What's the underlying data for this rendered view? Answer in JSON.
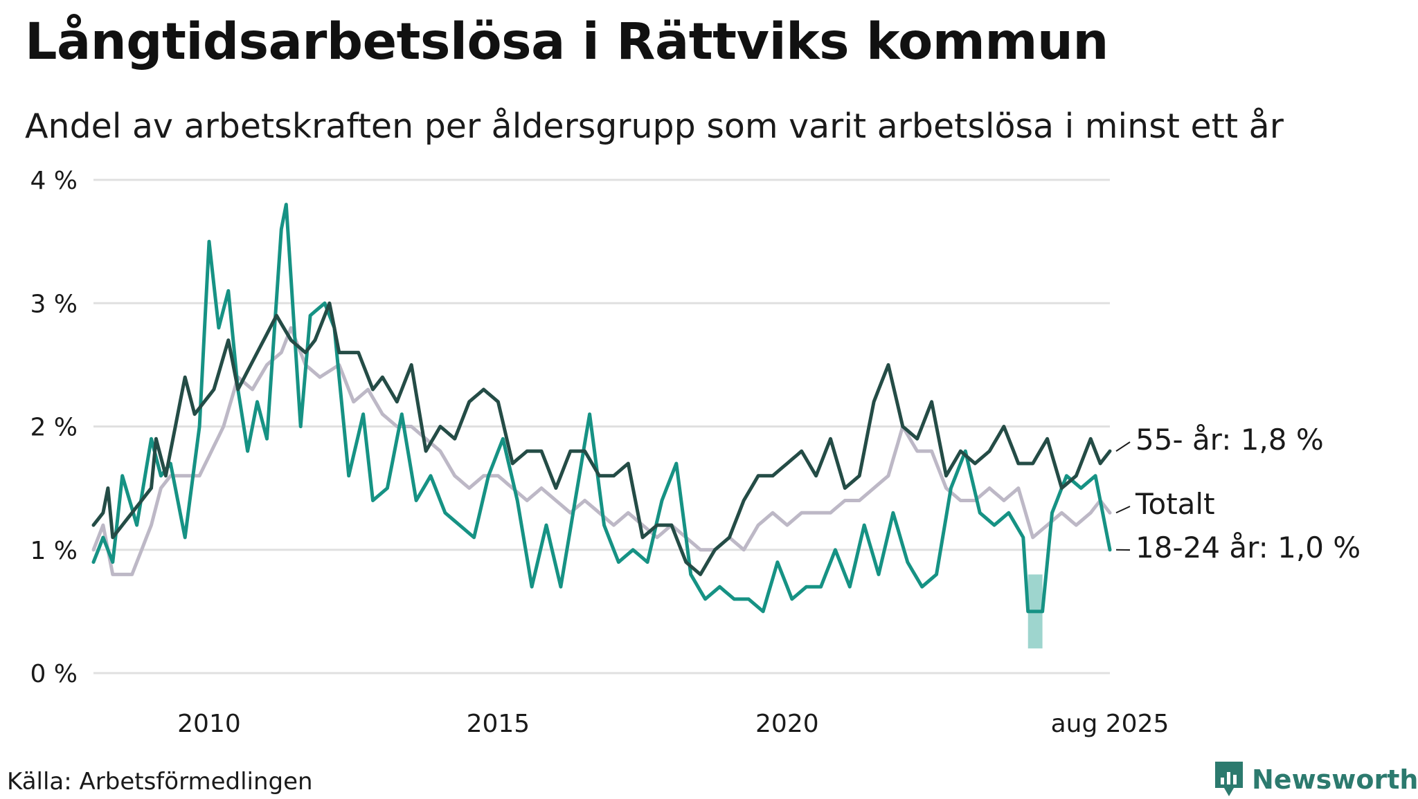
{
  "header": {
    "title": "Långtidsarbetslösa i Rättviks kommun",
    "subtitle": "Andel av arbetskraften per åldersgrupp som varit arbetslösa i minst ett år"
  },
  "footer": {
    "source": "Källa: Arbetsförmedlingen",
    "brand": "Newsworthy"
  },
  "colors": {
    "age_55_plus": "#244c46",
    "total": "#bdb8c6",
    "age_18_24": "#169284",
    "uncertainty": "#9ed5ce",
    "grid": "#e0e0e0",
    "brand": "#2c7a6e"
  },
  "icons": {
    "brand": "bar-chart-speech-bubble-icon"
  },
  "chart_data": {
    "type": "line",
    "unit": "%",
    "x_start": "2008-01",
    "x_end": "2025-08",
    "x_step": "month",
    "ylim": [
      0,
      4
    ],
    "yticks": [
      {
        "value": 0,
        "label": "0 %"
      },
      {
        "value": 1,
        "label": "1 %"
      },
      {
        "value": 2,
        "label": "2 %"
      },
      {
        "value": 3,
        "label": "3 %"
      },
      {
        "value": 4,
        "label": "4 %"
      }
    ],
    "xticks": [
      {
        "value": "2010-01",
        "label": "2010"
      },
      {
        "value": "2015-01",
        "label": "2015"
      },
      {
        "value": "2020-01",
        "label": "2020"
      },
      {
        "value": "2025-08",
        "label": "aug 2025"
      }
    ],
    "grid": true,
    "series": [
      {
        "key": "total",
        "label": "Totalt",
        "keyframes": [
          [
            "2008-01",
            1.0
          ],
          [
            "2008-03",
            1.2
          ],
          [
            "2008-05",
            0.8
          ],
          [
            "2008-09",
            0.8
          ],
          [
            "2009-01",
            1.2
          ],
          [
            "2009-03",
            1.5
          ],
          [
            "2009-05",
            1.6
          ],
          [
            "2009-11",
            1.6
          ],
          [
            "2010-04",
            2.0
          ],
          [
            "2010-07",
            2.4
          ],
          [
            "2010-10",
            2.3
          ],
          [
            "2011-01",
            2.5
          ],
          [
            "2011-04",
            2.6
          ],
          [
            "2011-06",
            2.8
          ],
          [
            "2011-09",
            2.5
          ],
          [
            "2011-12",
            2.4
          ],
          [
            "2012-04",
            2.5
          ],
          [
            "2012-07",
            2.2
          ],
          [
            "2012-10",
            2.3
          ],
          [
            "2013-01",
            2.1
          ],
          [
            "2013-04",
            2.0
          ],
          [
            "2013-07",
            2.0
          ],
          [
            "2013-10",
            1.9
          ],
          [
            "2014-01",
            1.8
          ],
          [
            "2014-04",
            1.6
          ],
          [
            "2014-07",
            1.5
          ],
          [
            "2014-10",
            1.6
          ],
          [
            "2015-01",
            1.6
          ],
          [
            "2015-04",
            1.5
          ],
          [
            "2015-07",
            1.4
          ],
          [
            "2015-10",
            1.5
          ],
          [
            "2016-01",
            1.4
          ],
          [
            "2016-04",
            1.3
          ],
          [
            "2016-07",
            1.4
          ],
          [
            "2016-10",
            1.3
          ],
          [
            "2017-01",
            1.2
          ],
          [
            "2017-04",
            1.3
          ],
          [
            "2017-07",
            1.2
          ],
          [
            "2017-10",
            1.1
          ],
          [
            "2018-01",
            1.2
          ],
          [
            "2018-04",
            1.1
          ],
          [
            "2018-07",
            1.0
          ],
          [
            "2018-10",
            1.0
          ],
          [
            "2019-01",
            1.1
          ],
          [
            "2019-04",
            1.0
          ],
          [
            "2019-07",
            1.2
          ],
          [
            "2019-10",
            1.3
          ],
          [
            "2020-01",
            1.2
          ],
          [
            "2020-04",
            1.3
          ],
          [
            "2020-07",
            1.3
          ],
          [
            "2020-10",
            1.3
          ],
          [
            "2021-01",
            1.4
          ],
          [
            "2021-04",
            1.4
          ],
          [
            "2021-07",
            1.5
          ],
          [
            "2021-10",
            1.6
          ],
          [
            "2022-01",
            2.0
          ],
          [
            "2022-04",
            1.8
          ],
          [
            "2022-07",
            1.8
          ],
          [
            "2022-10",
            1.5
          ],
          [
            "2023-01",
            1.4
          ],
          [
            "2023-04",
            1.4
          ],
          [
            "2023-07",
            1.5
          ],
          [
            "2023-10",
            1.4
          ],
          [
            "2024-01",
            1.5
          ],
          [
            "2024-04",
            1.1
          ],
          [
            "2024-07",
            1.2
          ],
          [
            "2024-10",
            1.3
          ],
          [
            "2025-01",
            1.2
          ],
          [
            "2025-04",
            1.3
          ],
          [
            "2025-06",
            1.4
          ],
          [
            "2025-08",
            1.3
          ]
        ]
      },
      {
        "key": "age_55_plus",
        "label": "55- år: 1,8 %",
        "keyframes": [
          [
            "2008-01",
            1.2
          ],
          [
            "2008-03",
            1.3
          ],
          [
            "2008-04",
            1.5
          ],
          [
            "2008-05",
            1.1
          ],
          [
            "2008-09",
            1.3
          ],
          [
            "2009-01",
            1.5
          ],
          [
            "2009-02",
            1.9
          ],
          [
            "2009-04",
            1.6
          ],
          [
            "2009-08",
            2.4
          ],
          [
            "2009-10",
            2.1
          ],
          [
            "2010-02",
            2.3
          ],
          [
            "2010-05",
            2.7
          ],
          [
            "2010-07",
            2.3
          ],
          [
            "2010-11",
            2.6
          ],
          [
            "2011-03",
            2.9
          ],
          [
            "2011-06",
            2.7
          ],
          [
            "2011-09",
            2.6
          ],
          [
            "2011-11",
            2.7
          ],
          [
            "2012-02",
            3.0
          ],
          [
            "2012-04",
            2.6
          ],
          [
            "2012-08",
            2.6
          ],
          [
            "2012-11",
            2.3
          ],
          [
            "2013-01",
            2.4
          ],
          [
            "2013-04",
            2.2
          ],
          [
            "2013-07",
            2.5
          ],
          [
            "2013-10",
            1.8
          ],
          [
            "2014-01",
            2.0
          ],
          [
            "2014-04",
            1.9
          ],
          [
            "2014-07",
            2.2
          ],
          [
            "2014-10",
            2.3
          ],
          [
            "2015-01",
            2.2
          ],
          [
            "2015-04",
            1.7
          ],
          [
            "2015-07",
            1.8
          ],
          [
            "2015-10",
            1.8
          ],
          [
            "2016-01",
            1.5
          ],
          [
            "2016-04",
            1.8
          ],
          [
            "2016-07",
            1.8
          ],
          [
            "2016-10",
            1.6
          ],
          [
            "2017-01",
            1.6
          ],
          [
            "2017-04",
            1.7
          ],
          [
            "2017-07",
            1.1
          ],
          [
            "2017-10",
            1.2
          ],
          [
            "2018-01",
            1.2
          ],
          [
            "2018-04",
            0.9
          ],
          [
            "2018-07",
            0.8
          ],
          [
            "2018-10",
            1.0
          ],
          [
            "2019-01",
            1.1
          ],
          [
            "2019-04",
            1.4
          ],
          [
            "2019-07",
            1.6
          ],
          [
            "2019-10",
            1.6
          ],
          [
            "2020-01",
            1.7
          ],
          [
            "2020-04",
            1.8
          ],
          [
            "2020-07",
            1.6
          ],
          [
            "2020-10",
            1.9
          ],
          [
            "2021-01",
            1.5
          ],
          [
            "2021-04",
            1.6
          ],
          [
            "2021-07",
            2.2
          ],
          [
            "2021-10",
            2.5
          ],
          [
            "2022-01",
            2.0
          ],
          [
            "2022-04",
            1.9
          ],
          [
            "2022-07",
            2.2
          ],
          [
            "2022-10",
            1.6
          ],
          [
            "2023-01",
            1.8
          ],
          [
            "2023-04",
            1.7
          ],
          [
            "2023-07",
            1.8
          ],
          [
            "2023-10",
            2.0
          ],
          [
            "2024-01",
            1.7
          ],
          [
            "2024-04",
            1.7
          ],
          [
            "2024-07",
            1.9
          ],
          [
            "2024-10",
            1.5
          ],
          [
            "2025-01",
            1.6
          ],
          [
            "2025-04",
            1.9
          ],
          [
            "2025-06",
            1.7
          ],
          [
            "2025-08",
            1.8
          ]
        ]
      },
      {
        "key": "age_18_24",
        "label": "18-24 år: 1,0 %",
        "keyframes": [
          [
            "2008-01",
            0.9
          ],
          [
            "2008-03",
            1.1
          ],
          [
            "2008-05",
            0.9
          ],
          [
            "2008-07",
            1.6
          ],
          [
            "2008-10",
            1.2
          ],
          [
            "2009-01",
            1.9
          ],
          [
            "2009-03",
            1.6
          ],
          [
            "2009-05",
            1.7
          ],
          [
            "2009-08",
            1.1
          ],
          [
            "2009-11",
            2.0
          ],
          [
            "2010-01",
            3.5
          ],
          [
            "2010-03",
            2.8
          ],
          [
            "2010-05",
            3.1
          ],
          [
            "2010-07",
            2.3
          ],
          [
            "2010-09",
            1.8
          ],
          [
            "2010-11",
            2.2
          ],
          [
            "2011-01",
            1.9
          ],
          [
            "2011-04",
            3.6
          ],
          [
            "2011-05",
            3.8
          ],
          [
            "2011-08",
            2.0
          ],
          [
            "2011-10",
            2.9
          ],
          [
            "2012-01",
            3.0
          ],
          [
            "2012-03",
            2.8
          ],
          [
            "2012-06",
            1.6
          ],
          [
            "2012-09",
            2.1
          ],
          [
            "2012-11",
            1.4
          ],
          [
            "2013-02",
            1.5
          ],
          [
            "2013-05",
            2.1
          ],
          [
            "2013-08",
            1.4
          ],
          [
            "2013-11",
            1.6
          ],
          [
            "2014-02",
            1.3
          ],
          [
            "2014-05",
            1.2
          ],
          [
            "2014-08",
            1.1
          ],
          [
            "2014-11",
            1.6
          ],
          [
            "2015-02",
            1.9
          ],
          [
            "2015-05",
            1.4
          ],
          [
            "2015-08",
            0.7
          ],
          [
            "2015-11",
            1.2
          ],
          [
            "2016-02",
            0.7
          ],
          [
            "2016-05",
            1.4
          ],
          [
            "2016-08",
            2.1
          ],
          [
            "2016-11",
            1.2
          ],
          [
            "2017-02",
            0.9
          ],
          [
            "2017-05",
            1.0
          ],
          [
            "2017-08",
            0.9
          ],
          [
            "2017-11",
            1.4
          ],
          [
            "2018-02",
            1.7
          ],
          [
            "2018-05",
            0.8
          ],
          [
            "2018-08",
            0.6
          ],
          [
            "2018-11",
            0.7
          ],
          [
            "2019-02",
            0.6
          ],
          [
            "2019-05",
            0.6
          ],
          [
            "2019-08",
            0.5
          ],
          [
            "2019-11",
            0.9
          ],
          [
            "2020-02",
            0.6
          ],
          [
            "2020-05",
            0.7
          ],
          [
            "2020-08",
            0.7
          ],
          [
            "2020-11",
            1.0
          ],
          [
            "2021-02",
            0.7
          ],
          [
            "2021-05",
            1.2
          ],
          [
            "2021-08",
            0.8
          ],
          [
            "2021-11",
            1.3
          ],
          [
            "2022-02",
            0.9
          ],
          [
            "2022-05",
            0.7
          ],
          [
            "2022-08",
            0.8
          ],
          [
            "2022-11",
            1.5
          ],
          [
            "2023-02",
            1.8
          ],
          [
            "2023-05",
            1.3
          ],
          [
            "2023-08",
            1.2
          ],
          [
            "2023-11",
            1.3
          ],
          [
            "2024-02",
            1.1
          ],
          [
            "2024-03",
            0.5
          ],
          [
            "2024-06",
            0.5
          ],
          [
            "2024-08",
            1.3
          ],
          [
            "2024-11",
            1.6
          ],
          [
            "2025-02",
            1.5
          ],
          [
            "2025-05",
            1.6
          ],
          [
            "2025-08",
            1.0
          ]
        ]
      }
    ],
    "uncertainty_band": {
      "series": "age_18_24",
      "x_from": "2024-03",
      "x_to": "2024-06",
      "low": 0.2,
      "high": 0.8
    },
    "end_labels": [
      "age_55_plus",
      "total",
      "age_18_24"
    ]
  }
}
